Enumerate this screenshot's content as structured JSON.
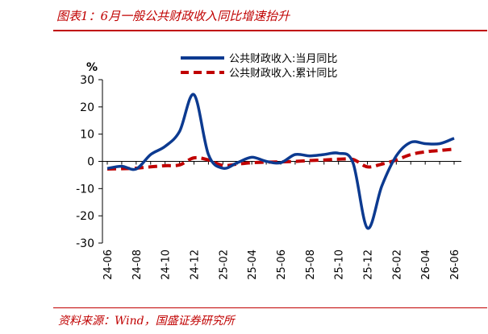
{
  "header": {
    "title": "图表1：6月一般公共财政收入同比增速抬升"
  },
  "footer": {
    "source": "资料来源：Wind，国盛证券研究所"
  },
  "chart_data": {
    "type": "line",
    "ylabel": "%",
    "ylim": [
      -30,
      30
    ],
    "yticks": [
      -30,
      -20,
      -10,
      0,
      10,
      20,
      30
    ],
    "categories": [
      "24-06",
      "24-07",
      "24-08",
      "24-09",
      "24-10",
      "24-11",
      "24-12",
      "25-01",
      "25-02",
      "25-03",
      "25-04",
      "25-05",
      "25-06",
      "25-07",
      "25-08",
      "25-09",
      "25-10",
      "25-11",
      "25-12",
      "26-01",
      "26-02",
      "26-03",
      "26-04",
      "26-05",
      "26-06"
    ],
    "xtick_labels": [
      "24-06",
      "24-08",
      "24-10",
      "24-12",
      "25-02",
      "25-04",
      "25-06",
      "25-08",
      "25-10",
      "25-12",
      "26-02",
      "26-04",
      "26-06"
    ],
    "legend_position": "top-center",
    "grid": false,
    "series": [
      {
        "name": "公共财政收入:当月同比",
        "style": "solid",
        "color": "#0c3a90",
        "values": [
          -2.6,
          -1.8,
          -2.8,
          2.5,
          5.5,
          11.0,
          24.5,
          2.5,
          -2.5,
          -0.5,
          1.5,
          0.0,
          -0.5,
          2.5,
          2.0,
          2.5,
          3.0,
          -0.5,
          -24.5,
          -9.0,
          2.0,
          7.0,
          6.5,
          6.5,
          8.5
        ]
      },
      {
        "name": "公共财政收入:累计同比",
        "style": "dashed",
        "color": "#c00000",
        "values": [
          -2.8,
          -2.7,
          -2.5,
          -2.0,
          -1.6,
          -1.3,
          1.3,
          0.5,
          -1.5,
          -1.0,
          -0.5,
          -0.3,
          -0.2,
          0.0,
          0.3,
          0.5,
          0.8,
          0.7,
          -2.0,
          -1.0,
          0.5,
          2.5,
          3.5,
          4.0,
          4.5
        ]
      }
    ]
  }
}
